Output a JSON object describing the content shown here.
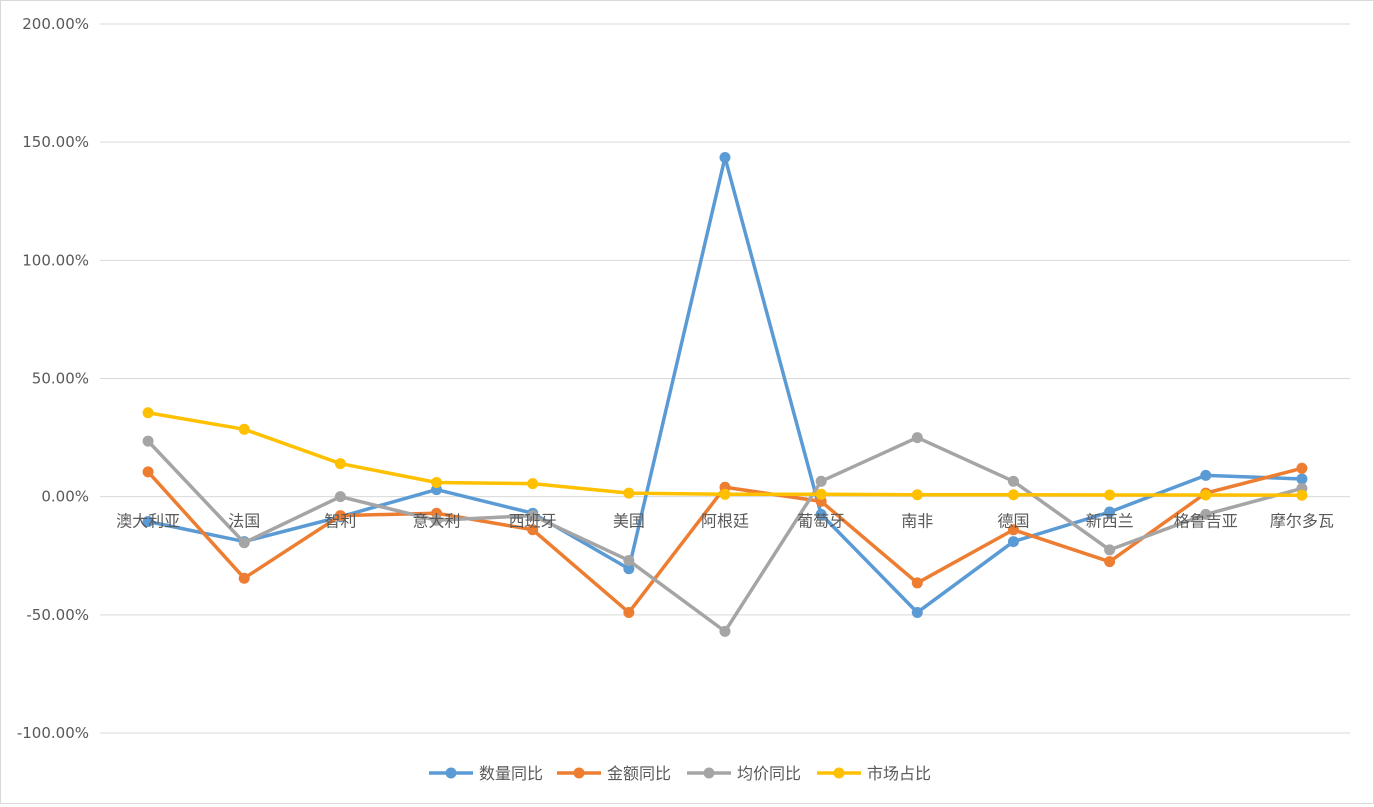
{
  "chart_data": {
    "type": "line",
    "title": "",
    "xlabel": "",
    "ylabel": "",
    "categories": [
      "澳大利亚",
      "法国",
      "智利",
      "意大利",
      "西班牙",
      "美国",
      "阿根廷",
      "葡萄牙",
      "南非",
      "德国",
      "新西兰",
      "格鲁吉亚",
      "摩尔多瓦"
    ],
    "ylim": [
      -100,
      200
    ],
    "y_ticks": [
      -100,
      -50,
      0,
      50,
      100,
      150,
      200
    ],
    "y_tick_labels": [
      "-100.00%",
      "-50.00%",
      "0.00%",
      "50.00%",
      "100.00%",
      "150.00%",
      "200.00%"
    ],
    "y_format": "percent",
    "grid": true,
    "legend_position": "bottom",
    "series": [
      {
        "name": "数量同比",
        "color": "#5B9BD5",
        "values": [
          -10.5,
          -19.0,
          -8.5,
          3.0,
          -7.0,
          -30.5,
          143.5,
          -7.5,
          -49.0,
          -19.0,
          -6.5,
          9.0,
          7.5
        ]
      },
      {
        "name": "金额同比",
        "color": "#ED7D31",
        "values": [
          10.5,
          -34.5,
          -8.0,
          -7.0,
          -14.0,
          -49.0,
          4.0,
          -2.0,
          -36.5,
          -14.0,
          -27.5,
          1.5,
          12.0
        ]
      },
      {
        "name": "均价同比",
        "color": "#A5A5A5",
        "values": [
          23.5,
          -19.5,
          0.0,
          -10.0,
          -8.0,
          -27.0,
          -57.0,
          6.5,
          25.0,
          6.5,
          -22.5,
          -7.5,
          3.5
        ]
      },
      {
        "name": "市场占比",
        "color": "#FFC000",
        "values": [
          35.5,
          28.5,
          14.0,
          6.0,
          5.5,
          1.5,
          1.0,
          1.0,
          0.8,
          0.8,
          0.7,
          0.7,
          0.6
        ]
      }
    ]
  }
}
